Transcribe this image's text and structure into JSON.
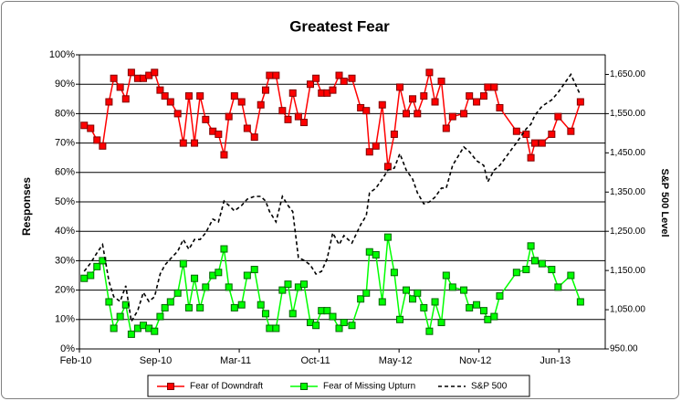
{
  "chart_data": {
    "type": "line",
    "title": "Greatest Fear",
    "ylabel": "Responses",
    "y2label": "S&P 500 Level",
    "x": [
      0.06,
      0.14,
      0.22,
      0.29,
      0.37,
      0.43,
      0.51,
      0.58,
      0.65,
      0.73,
      0.8,
      0.87,
      0.94,
      1.01,
      1.07,
      1.14,
      1.23,
      1.3,
      1.37,
      1.44,
      1.51,
      1.58,
      1.67,
      1.74,
      1.81,
      1.87,
      1.94,
      2.03,
      2.1,
      2.19,
      2.27,
      2.33,
      2.38,
      2.46,
      2.54,
      2.61,
      2.67,
      2.74,
      2.81,
      2.89,
      2.96,
      3.03,
      3.1,
      3.17,
      3.25,
      3.31,
      3.41,
      3.52,
      3.59,
      3.63,
      3.71,
      3.79,
      3.86,
      3.94,
      4.01,
      4.09,
      4.17,
      4.23,
      4.31,
      4.38,
      4.45,
      4.53,
      4.59,
      4.67,
      4.81,
      4.88,
      4.97,
      5.06,
      5.11,
      5.19,
      5.26,
      5.47,
      5.59,
      5.65,
      5.7,
      5.79,
      5.91,
      5.99,
      6.15,
      6.27
    ],
    "xlim": [
      0,
      6.58
    ],
    "xticks": [
      {
        "value": 0,
        "label": "Feb-10"
      },
      {
        "value": 1,
        "label": "Sep-10"
      },
      {
        "value": 2,
        "label": "Mar-11"
      },
      {
        "value": 3,
        "label": "Oct-11"
      },
      {
        "value": 4,
        "label": "May-12"
      },
      {
        "value": 5,
        "label": "Nov-12"
      },
      {
        "value": 6,
        "label": "Jun-13"
      }
    ],
    "ylim": [
      0,
      100
    ],
    "yticks": [
      {
        "value": 0,
        "label": "0%"
      },
      {
        "value": 10,
        "label": "10%"
      },
      {
        "value": 20,
        "label": "20%"
      },
      {
        "value": 30,
        "label": "30%"
      },
      {
        "value": 40,
        "label": "40%"
      },
      {
        "value": 50,
        "label": "50%"
      },
      {
        "value": 60,
        "label": "60%"
      },
      {
        "value": 70,
        "label": "70%"
      },
      {
        "value": 80,
        "label": "80%"
      },
      {
        "value": 90,
        "label": "90%"
      },
      {
        "value": 100,
        "label": "100%"
      }
    ],
    "y2lim": [
      950,
      1700
    ],
    "y2ticks": [
      {
        "value": 950,
        "label": "950.00"
      },
      {
        "value": 1050,
        "label": "1,050.00"
      },
      {
        "value": 1150,
        "label": "1,150.00"
      },
      {
        "value": 1250,
        "label": "1,250.00"
      },
      {
        "value": 1350,
        "label": "1,350.00"
      },
      {
        "value": 1450,
        "label": "1,450.00"
      },
      {
        "value": 1550,
        "label": "1,550.00"
      },
      {
        "value": 1650,
        "label": "1,650.00"
      }
    ],
    "grid": true,
    "legend": "bottom",
    "series": [
      {
        "name": "Fear of Downdraft",
        "color": "#ff0000",
        "marker_edge": "#800000",
        "marker": "square",
        "values": [
          76,
          75,
          71,
          69,
          84,
          92,
          89,
          85,
          94,
          92,
          92,
          93,
          94,
          88,
          86,
          84,
          80,
          70,
          86,
          70,
          86,
          78,
          74,
          73,
          66,
          79,
          86,
          84,
          75,
          72,
          83,
          88,
          93,
          93,
          81,
          78,
          87,
          79,
          77,
          90,
          92,
          87,
          87,
          88,
          93,
          91,
          92,
          82,
          81,
          67,
          69,
          83,
          62,
          73,
          89,
          80,
          85,
          80,
          86,
          94,
          84,
          91,
          75,
          79,
          80,
          86,
          84,
          86,
          89,
          89,
          82,
          74,
          73,
          65,
          70,
          70,
          73,
          79,
          74,
          84
        ]
      },
      {
        "name": "Fear of Missing Upturn",
        "color": "#00ff00",
        "marker_edge": "#006400",
        "marker": "square",
        "values": [
          24,
          25,
          28,
          30,
          16,
          7,
          11,
          15,
          5,
          7,
          8,
          7,
          6,
          11,
          14,
          16,
          19,
          29,
          14,
          24,
          14,
          21,
          25,
          26,
          34,
          21,
          14,
          15,
          25,
          27,
          15,
          12,
          7,
          7,
          20,
          22,
          12,
          21,
          22,
          9,
          8,
          13,
          13,
          11,
          7,
          9,
          8,
          17,
          19,
          33,
          32,
          16,
          38,
          26,
          10,
          20,
          17,
          19,
          14,
          6,
          16,
          9,
          25,
          21,
          20,
          14,
          15,
          13,
          10,
          11,
          18,
          26,
          27,
          35,
          30,
          29,
          27,
          21,
          25,
          16
        ]
      },
      {
        "name": "S&P 500",
        "color": "#000000",
        "dash": true,
        "axis": "y2",
        "values": [
          1148,
          1169,
          1195,
          1216,
          1122,
          1083,
          1071,
          1111,
          1020,
          1048,
          1094,
          1071,
          1083,
          1141,
          1164,
          1180,
          1199,
          1229,
          1204,
          1229,
          1229,
          1246,
          1281,
          1274,
          1327,
          1316,
          1302,
          1316,
          1332,
          1339,
          1339,
          1327,
          1300,
          1274,
          1339,
          1316,
          1300,
          1183,
          1176,
          1164,
          1141,
          1148,
          1180,
          1246,
          1216,
          1239,
          1220,
          1267,
          1290,
          1348,
          1360,
          1383,
          1406,
          1411,
          1448,
          1406,
          1383,
          1348,
          1320,
          1325,
          1337,
          1360,
          1360,
          1418,
          1465,
          1453,
          1430,
          1418,
          1376,
          1406,
          1418,
          1476,
          1511,
          1523,
          1546,
          1569,
          1585,
          1604,
          1650,
          1597
        ]
      }
    ]
  }
}
